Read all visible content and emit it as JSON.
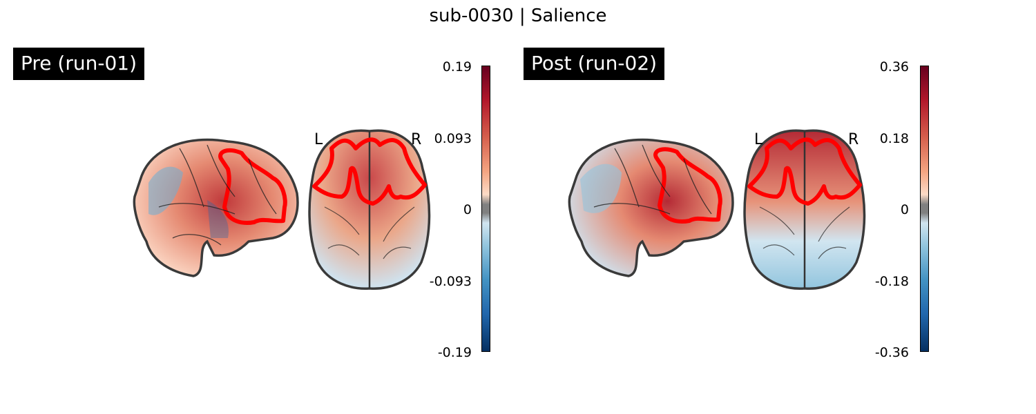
{
  "title": "sub-0030 | Salience",
  "panels": [
    {
      "label": "Pre (run-01)",
      "colorbar_ticks": [
        "0.19",
        "0.093",
        "0",
        "-0.093",
        "-0.19"
      ],
      "left_marker": "L",
      "right_marker": "R"
    },
    {
      "label": "Post (run-02)",
      "colorbar_ticks": [
        "0.36",
        "0.18",
        "0",
        "-0.18",
        "-0.36"
      ],
      "left_marker": "L",
      "right_marker": "R"
    }
  ],
  "colors": {
    "contour": "#ff0000",
    "positive_max": "#67001f",
    "negative_max": "#053061",
    "zero": "#808080"
  }
}
